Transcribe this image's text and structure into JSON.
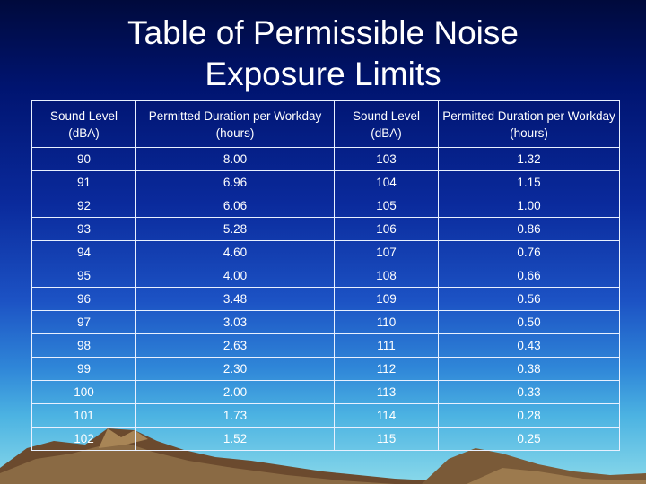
{
  "title": {
    "line1": "Table of Permissible Noise",
    "line2": "Exposure Limits"
  },
  "table": {
    "headers": [
      "Sound Level (dBA)",
      "Permitted Duration per Workday (hours)",
      "Sound Level (dBA)",
      "Permitted Duration per Workday (hours)"
    ],
    "rows": [
      [
        "90",
        "8.00",
        "103",
        "1.32"
      ],
      [
        "91",
        "6.96",
        "104",
        "1.15"
      ],
      [
        "92",
        "6.06",
        "105",
        "1.00"
      ],
      [
        "93",
        "5.28",
        "106",
        "0.86"
      ],
      [
        "94",
        "4.60",
        "107",
        "0.76"
      ],
      [
        "95",
        "4.00",
        "108",
        "0.66"
      ],
      [
        "96",
        "3.48",
        "109",
        "0.56"
      ],
      [
        "97",
        "3.03",
        "110",
        "0.50"
      ],
      [
        "98",
        "2.63",
        "111",
        "0.43"
      ],
      [
        "99",
        "2.30",
        "112",
        "0.38"
      ],
      [
        "100",
        "2.00",
        "113",
        "0.33"
      ],
      [
        "101",
        "1.73",
        "114",
        "0.28"
      ],
      [
        "102",
        "1.52",
        "115",
        "0.25"
      ]
    ]
  }
}
